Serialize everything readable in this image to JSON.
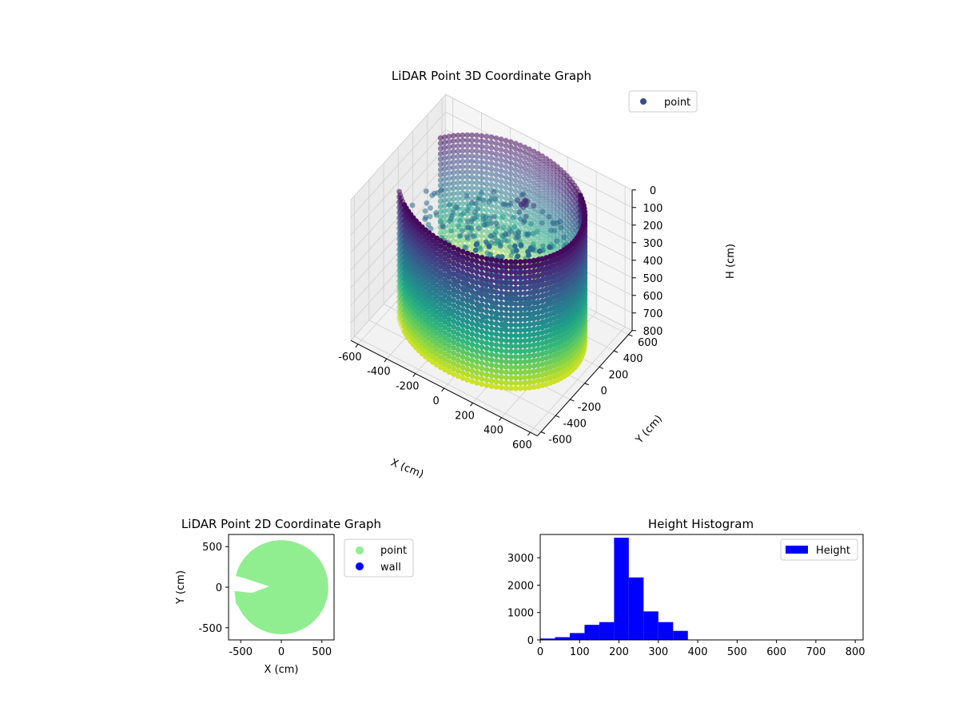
{
  "chart_data": [
    {
      "type": "scatter",
      "projection": "3d",
      "title": "LiDAR Point 3D Coordinate Graph",
      "xlabel": "X (cm)",
      "ylabel": "Y (cm)",
      "zlabel": "H (cm)",
      "xlim": [
        -650,
        650
      ],
      "ylim": [
        -650,
        650
      ],
      "zlim": [
        0,
        800
      ],
      "z_inverted": true,
      "xticks": [
        "-600",
        "-400",
        "-200",
        "0",
        "200",
        "400",
        "600"
      ],
      "yticks": [
        "-600",
        "-400",
        "-200",
        "0",
        "200",
        "400",
        "600"
      ],
      "zticks": [
        "0",
        "100",
        "200",
        "300",
        "400",
        "500",
        "600",
        "700",
        "800"
      ],
      "colormap": "viridis",
      "grid": true,
      "legend": {
        "position": "upper-right",
        "entries": [
          {
            "label": "point",
            "color": "#3b4c8c"
          }
        ]
      },
      "structure": {
        "wall_radius": 580,
        "wall_height_range": [
          0,
          800
        ],
        "opening_angle_deg": [
          150,
          215
        ]
      }
    },
    {
      "type": "scatter",
      "title": "LiDAR Point 2D Coordinate Graph",
      "xlabel": "X (cm)",
      "ylabel": "Y (cm)",
      "xlim": [
        -650,
        650
      ],
      "ylim": [
        -650,
        650
      ],
      "xticks": [
        "-500",
        "0",
        "500"
      ],
      "yticks": [
        "-500",
        "0",
        "500"
      ],
      "series": [
        {
          "name": "point",
          "color": "#90ee90",
          "region_radius": 580
        },
        {
          "name": "wall",
          "color": "#0000ff"
        }
      ],
      "legend": {
        "position": "outside-right"
      }
    },
    {
      "type": "bar",
      "subtype": "histogram",
      "title": "Height Histogram",
      "color": "#0000ff",
      "xlim": [
        0,
        820
      ],
      "ylim": [
        0,
        3850
      ],
      "xticks": [
        "0",
        "100",
        "200",
        "300",
        "400",
        "500",
        "600",
        "700",
        "800"
      ],
      "yticks": [
        "0",
        "1000",
        "2000",
        "3000"
      ],
      "bin_edges": [
        0,
        37.5,
        75,
        112.5,
        150,
        187.5,
        225,
        262.5,
        300,
        337.5,
        375
      ],
      "series": [
        {
          "name": "Height",
          "values": [
            50,
            100,
            250,
            550,
            650,
            3730,
            2280,
            1040,
            650,
            330
          ]
        }
      ],
      "legend": {
        "position": "upper-right"
      }
    }
  ]
}
